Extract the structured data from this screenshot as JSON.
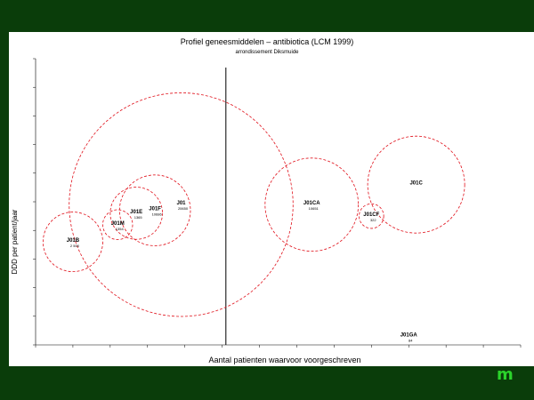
{
  "chart_data": {
    "type": "bubble",
    "title": "Profiel geneesmiddelen – antibiotica (LCM 1999)",
    "subtitle": "arrondissement Diksmuide",
    "xlabel": "Aantal patienten waarvoor voorgeschreven",
    "ylabel": "DDD per patient/jaar",
    "reference_line_x": 0,
    "xlim": [
      0,
      13
    ],
    "ylim": [
      0,
      10
    ],
    "grid": false,
    "bubbles": [
      {
        "label": "J01C",
        "value": "",
        "x": 10.2,
        "y": 5.6,
        "r": 1.3
      },
      {
        "label": "J01CA",
        "value": "10651",
        "x": 7.4,
        "y": 4.9,
        "r": 1.25
      },
      {
        "label": "J01CF",
        "value": "322",
        "x": 9.0,
        "y": 4.5,
        "r": 0.33
      },
      {
        "label": "J01",
        "value": "20650",
        "x": 3.9,
        "y": 4.9,
        "r": 3.0
      },
      {
        "label": "J01F",
        "value": "10686",
        "x": 3.2,
        "y": 4.7,
        "r": 0.95
      },
      {
        "label": "J01E",
        "value": "1365",
        "x": 2.7,
        "y": 4.6,
        "r": 0.7
      },
      {
        "label": "J01M",
        "value": "1354",
        "x": 2.2,
        "y": 4.2,
        "r": 0.4
      },
      {
        "label": "J01B",
        "value": "2 500",
        "x": 1.0,
        "y": 3.6,
        "r": 0.8
      },
      {
        "label": "J01GA",
        "value": "84",
        "x": 10.0,
        "y": 0.3,
        "r": 0
      }
    ]
  },
  "logo": {
    "text": "m",
    "color": "#22cc22"
  }
}
